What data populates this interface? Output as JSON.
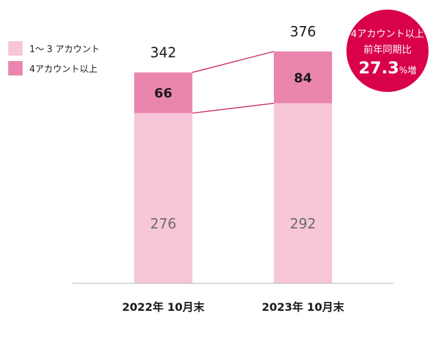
{
  "chart_data": {
    "type": "bar",
    "stacked": true,
    "categories": [
      "2022年 10月末",
      "2023年 10月末"
    ],
    "series": [
      {
        "name": "1～ 3 アカウント",
        "values": [
          276,
          292
        ],
        "color": "#f7c6d9"
      },
      {
        "name": "4アカウント以上",
        "values": [
          66,
          84
        ],
        "color": "#ea86ad"
      }
    ],
    "totals": [
      342,
      376
    ],
    "ylim": [
      0,
      376
    ],
    "legend_position": "top-left",
    "grid": false,
    "connector_color": "#c8174f",
    "callout": {
      "line1": "4アカウント以上",
      "line2": "前年同期比",
      "value": "27.3",
      "unit": "%増",
      "color": "#d9004c"
    }
  }
}
